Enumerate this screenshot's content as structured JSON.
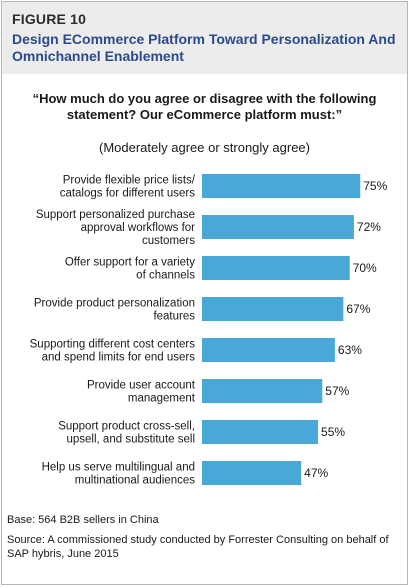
{
  "header": {
    "figure_label": "FIGURE 10",
    "title": "Design ECommerce Platform Toward Personalization And Omnichannel Enablement"
  },
  "question": {
    "text": "“How much do you agree or disagree with the following statement? Our eCommerce platform must:”",
    "subtext": "(Moderately agree or strongly agree)"
  },
  "chart_data": {
    "type": "bar",
    "orientation": "horizontal",
    "categories": [
      [
        "Provide flexible price lists/",
        "catalogs for different users"
      ],
      [
        "Support personalized purchase",
        "approval workflows for",
        "customers"
      ],
      [
        "Offer support for a variety",
        "of channels"
      ],
      [
        "Provide product personalization",
        "features"
      ],
      [
        "Supporting different cost centers",
        "and spend limits for end users"
      ],
      [
        "Provide user account",
        "management"
      ],
      [
        "Support product cross-sell,",
        "upsell, and substitute sell"
      ],
      [
        "Help us serve multilingual and",
        "multinational audiences"
      ]
    ],
    "values": [
      75,
      72,
      70,
      67,
      63,
      57,
      55,
      47
    ],
    "value_labels": [
      "75%",
      "72%",
      "70%",
      "67%",
      "63%",
      "57%",
      "55%",
      "47%"
    ],
    "xlim": [
      0,
      100
    ],
    "bar_color": "#4aa8d8",
    "grid": false,
    "legend": "none"
  },
  "footnotes": {
    "base": "Base: 564 B2B sellers in China",
    "source": "Source: A commissioned study conducted by Forrester Consulting on behalf of SAP hybris, June 2015"
  }
}
